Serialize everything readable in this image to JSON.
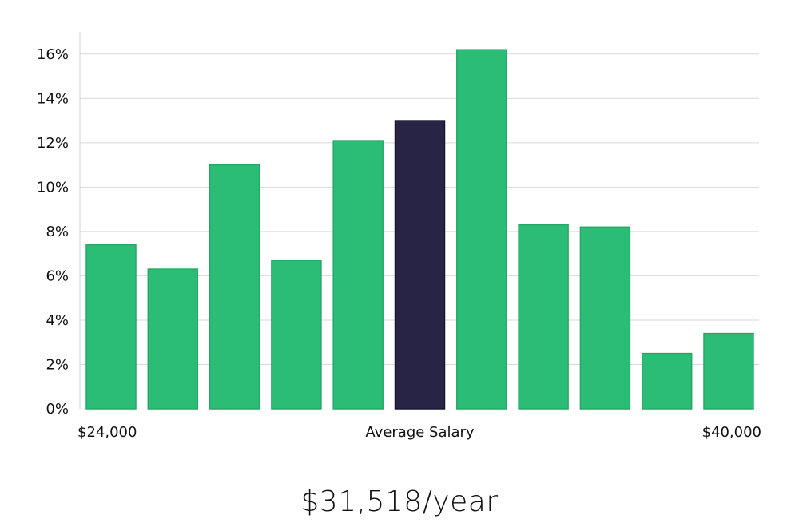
{
  "chart_data": {
    "type": "bar",
    "values": [
      7.4,
      6.3,
      11.0,
      6.7,
      12.1,
      13.0,
      16.2,
      8.3,
      8.2,
      2.5,
      3.4
    ],
    "highlight_index": 5,
    "colors": {
      "bar": "#2bbd76",
      "bar_edge": "#25a866",
      "highlight": "#282446",
      "highlight_edge": "#1a1733",
      "grid": "#d9d9d9",
      "axis": "#d0d0d0"
    },
    "ylim": [
      0,
      17
    ],
    "yticks": [
      0,
      2,
      4,
      6,
      8,
      10,
      12,
      14,
      16
    ],
    "ytick_suffix": "%",
    "grid": true,
    "x_labels": {
      "left": "$24,000",
      "center": "Average Salary",
      "right": "$40,000"
    }
  },
  "caption": "$31,518/year"
}
